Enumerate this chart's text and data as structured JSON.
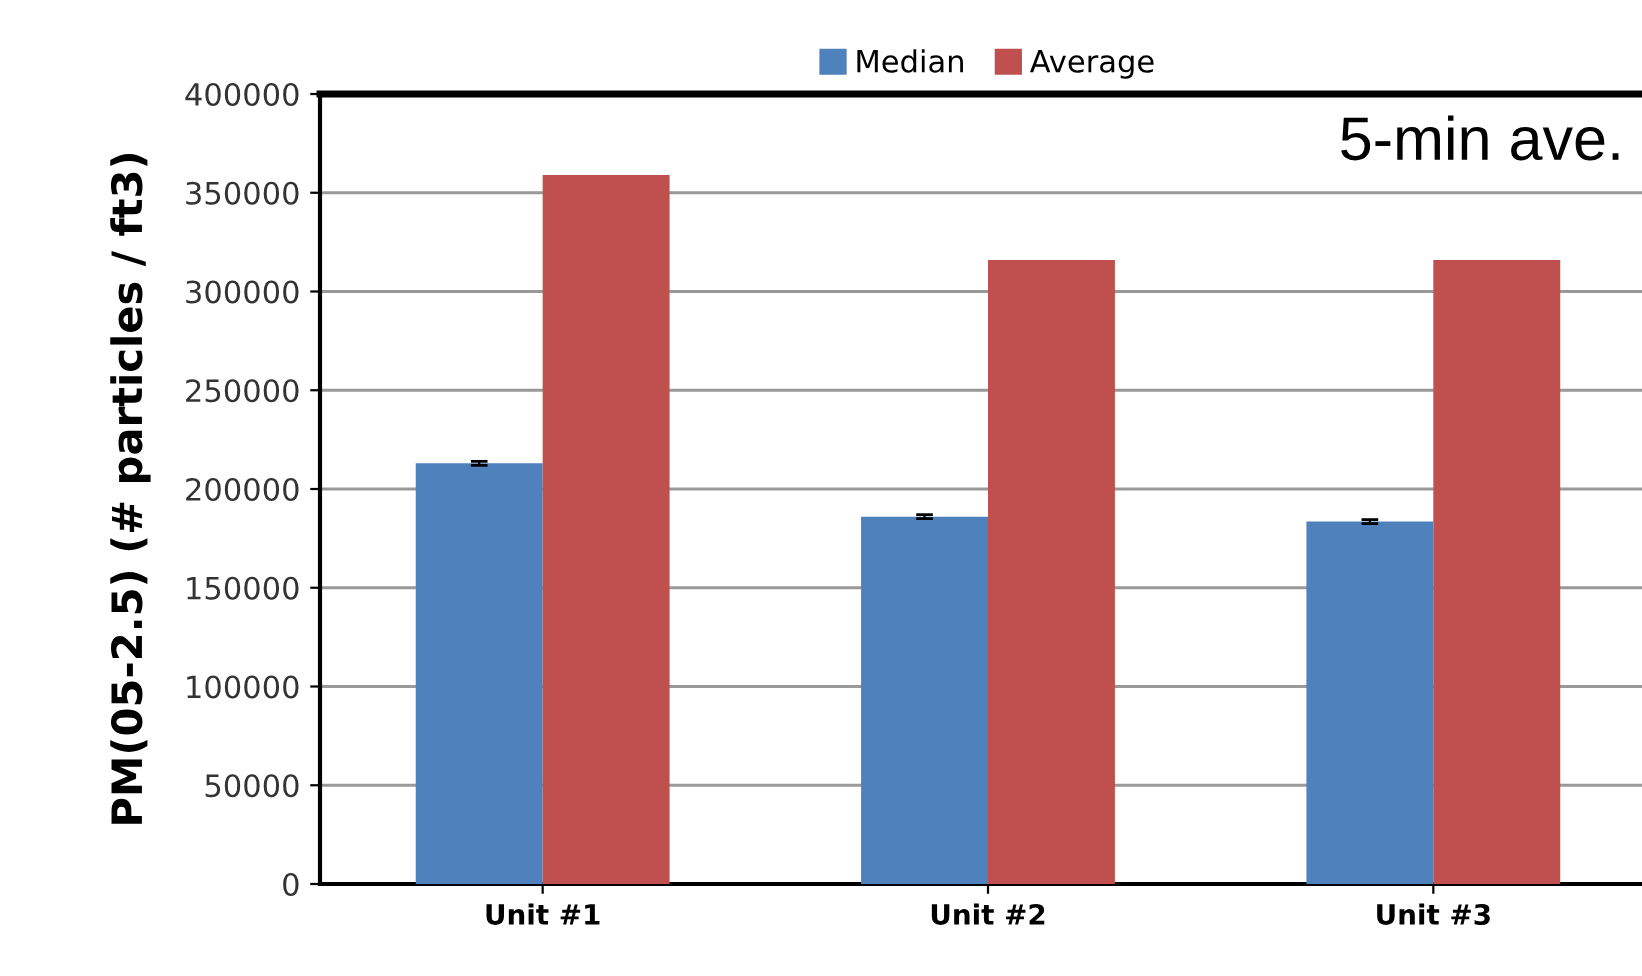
{
  "chart_data": {
    "type": "bar",
    "ylabel": "PM(05-2.5) (# particles / ft3)",
    "categories": [
      "Unit #1",
      "Unit #2",
      "Unit #3"
    ],
    "series": [
      {
        "name": "Median",
        "color": "#4f81bd",
        "values": [
          213000,
          186000,
          183500
        ],
        "errors": [
          1000,
          1000,
          1000
        ]
      },
      {
        "name": "Average",
        "color": "#c0504d",
        "values": [
          359000,
          316000,
          316000
        ]
      }
    ],
    "ylim": [
      0,
      400000
    ],
    "yticks": [
      0,
      50000,
      100000,
      150000,
      200000,
      250000,
      300000,
      350000,
      400000
    ],
    "grid": "y",
    "legend": "top",
    "annotations": [
      "5-min ave."
    ]
  }
}
